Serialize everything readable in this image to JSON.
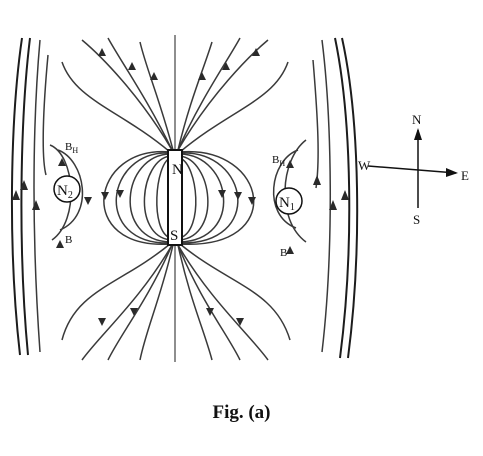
{
  "figure": {
    "magnet": {
      "north_label": "N",
      "south_label": "S"
    },
    "neutral_points": [
      {
        "label": "N",
        "sub": "1"
      },
      {
        "label": "N",
        "sub": "2"
      }
    ],
    "field_labels": {
      "bh_main": "B",
      "bh_sub": "H",
      "b": "B"
    },
    "compass": {
      "north": "N",
      "south": "S",
      "east": "E",
      "west": "W"
    }
  },
  "caption": {
    "prefix": "Fig.",
    "label": "(a)"
  }
}
